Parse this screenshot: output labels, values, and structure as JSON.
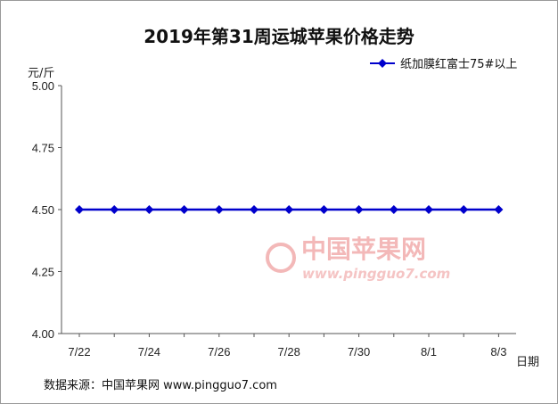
{
  "chart_data": {
    "type": "line",
    "title": "2019年第31周运城苹果价格走势",
    "ylabel": "元/斤",
    "xlabel": "日期",
    "ylim": [
      4.0,
      5.0
    ],
    "y_ticks": [
      "4.00",
      "4.25",
      "4.50",
      "4.75",
      "5.00"
    ],
    "x_tick_labels": [
      "7/22",
      "7/24",
      "7/26",
      "7/28",
      "7/30",
      "8/1",
      "8/3"
    ],
    "x": [
      "7/22",
      "7/23",
      "7/24",
      "7/25",
      "7/26",
      "7/27",
      "7/28",
      "7/29",
      "7/30",
      "7/31",
      "8/1",
      "8/2",
      "8/3"
    ],
    "series": [
      {
        "name": "纸加膜红富士75#以上",
        "color": "#0000cc",
        "values": [
          4.5,
          4.5,
          4.5,
          4.5,
          4.5,
          4.5,
          4.5,
          4.5,
          4.5,
          4.5,
          4.5,
          4.5,
          4.5
        ]
      }
    ],
    "grid": false,
    "legend_position": "top-right"
  },
  "source_text": "数据来源：中国苹果网 www.pingguo7.com",
  "watermark": {
    "text_cn": "中国苹果网",
    "text_url": "www.pingguo7.com",
    "color": "#f3b8b8"
  }
}
